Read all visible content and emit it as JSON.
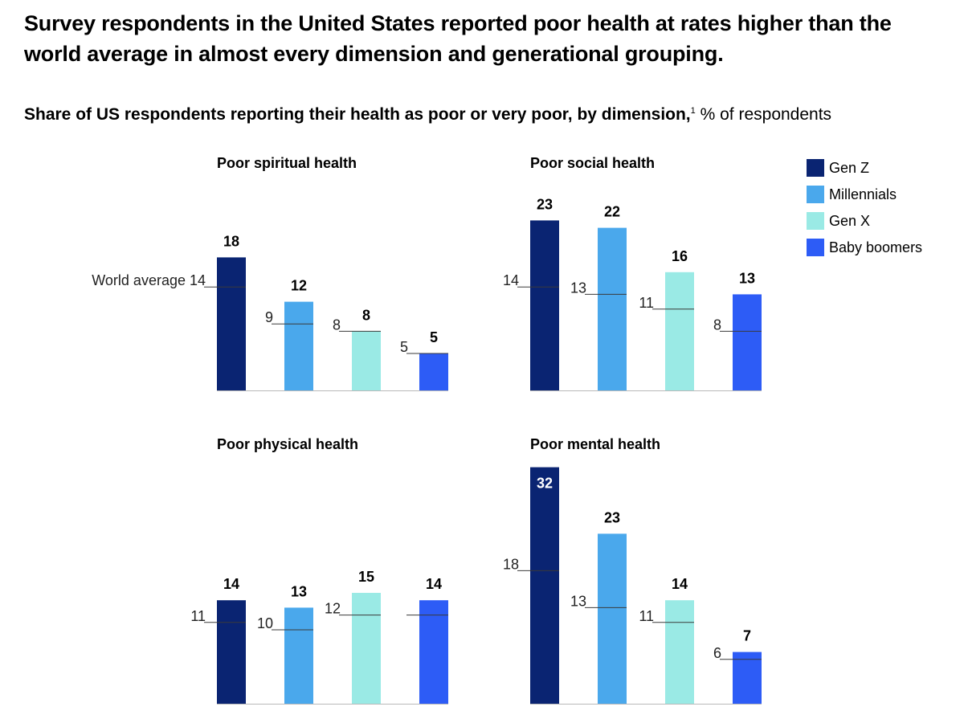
{
  "headline": "Survey respondents in the United States reported poor health at rates higher than the world average in almost every dimension and generational grouping.",
  "subtitle": {
    "bold": "Share of US respondents reporting their health as poor or very poor, by dimension,",
    "footnote": "1",
    "rest": " % of respondents"
  },
  "legend": [
    {
      "label": "Gen Z",
      "color": "#0a2472"
    },
    {
      "label": "Millennials",
      "color": "#4aa8ec"
    },
    {
      "label": "Gen X",
      "color": "#9aeae5"
    },
    {
      "label": "Baby boomers",
      "color": "#2d5cf6"
    }
  ],
  "chart_data": [
    {
      "type": "bar",
      "title": "Poor spiritual health",
      "categories": [
        "Gen Z",
        "Millennials",
        "Gen X",
        "Baby boomers"
      ],
      "values": [
        18,
        12,
        8,
        5
      ],
      "world_average": [
        14,
        9,
        8,
        5
      ],
      "world_average_labels": [
        "World average 14",
        "9",
        "8",
        "5"
      ],
      "ylim": [
        0,
        32
      ]
    },
    {
      "type": "bar",
      "title": "Poor social health",
      "categories": [
        "Gen Z",
        "Millennials",
        "Gen X",
        "Baby boomers"
      ],
      "values": [
        23,
        22,
        16,
        13
      ],
      "world_average": [
        14,
        13,
        11,
        8
      ],
      "world_average_labels": [
        "14",
        "13",
        "11",
        "8"
      ],
      "ylim": [
        0,
        32
      ]
    },
    {
      "type": "bar",
      "title": "Poor physical health",
      "categories": [
        "Gen Z",
        "Millennials",
        "Gen X",
        "Baby boomers"
      ],
      "values": [
        14,
        13,
        15,
        14
      ],
      "world_average": [
        11,
        10,
        12,
        12
      ],
      "world_average_labels": [
        "11",
        "10",
        "12",
        ""
      ],
      "ylim": [
        0,
        32
      ]
    },
    {
      "type": "bar",
      "title": "Poor mental health",
      "categories": [
        "Gen Z",
        "Millennials",
        "Gen X",
        "Baby boomers"
      ],
      "values": [
        32,
        23,
        14,
        7
      ],
      "world_average": [
        18,
        13,
        11,
        6
      ],
      "world_average_labels": [
        "18",
        "13",
        "11",
        "6"
      ],
      "ylim": [
        0,
        32
      ]
    }
  ]
}
